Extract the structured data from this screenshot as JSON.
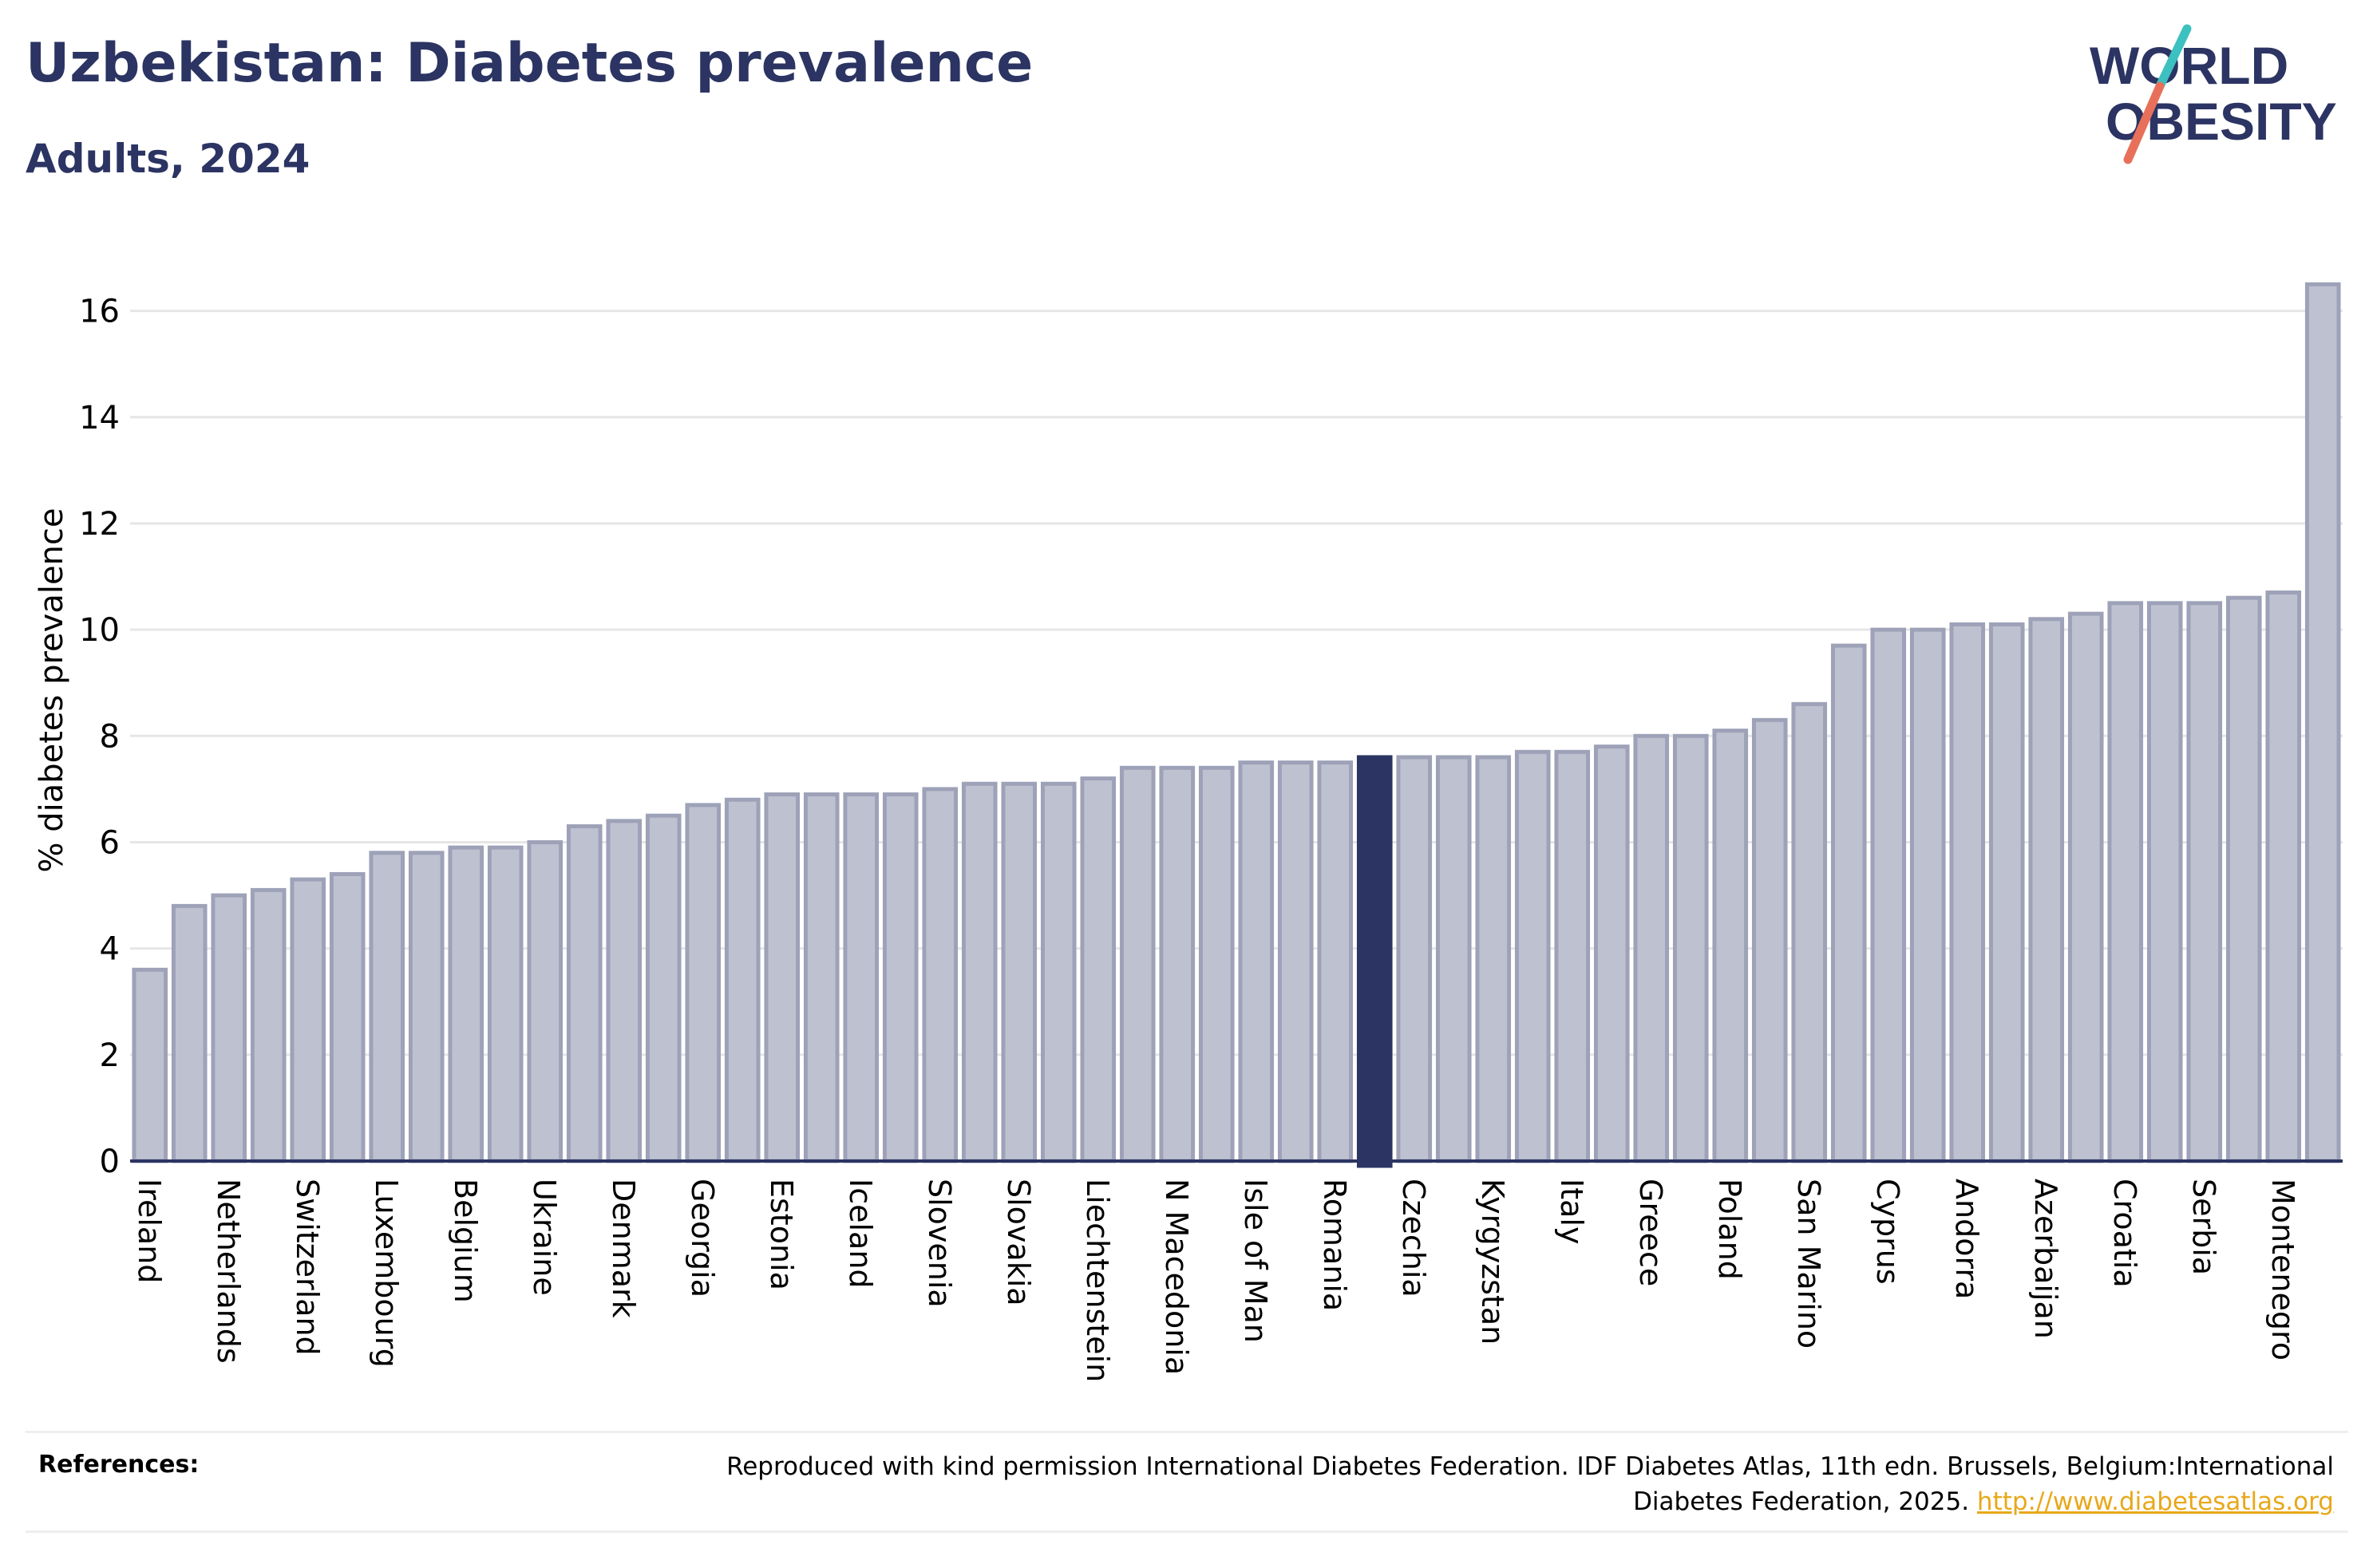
{
  "header": {
    "title": "Uzbekistan: Diabetes prevalence",
    "subtitle": "Adults, 2024"
  },
  "logo": {
    "line1": "WORLD",
    "line2": "OBESITY",
    "accent_colors": [
      "#3cc0c0",
      "#e8705a"
    ]
  },
  "references": {
    "label": "References:",
    "text": "Reproduced with kind permission International Diabetes Federation. IDF Diabetes Atlas, 11th edn. Brussels, Belgium:International Diabetes Federation, 2025.",
    "link": "http://www.diabetesatlas.org"
  },
  "colors": {
    "bar": "#bec1d0",
    "bar_border": "#9ea2b8",
    "highlight": "#2b3462",
    "grid": "#e6e6e6",
    "axis": "#2b3462"
  },
  "chart_data": {
    "type": "bar",
    "title": "Uzbekistan: Diabetes prevalence",
    "subtitle": "Adults, 2024",
    "ylabel": "% diabetes prevalence",
    "ylim": [
      0,
      17
    ],
    "yticks": [
      0,
      2,
      4,
      6,
      8,
      10,
      12,
      14,
      16
    ],
    "grid": true,
    "highlight_index": 31,
    "tick_labels": [
      {
        "index": 0,
        "label": "Ireland"
      },
      {
        "index": 2,
        "label": "Netherlands"
      },
      {
        "index": 4,
        "label": "Switzerland"
      },
      {
        "index": 6,
        "label": "Luxembourg"
      },
      {
        "index": 8,
        "label": "Belgium"
      },
      {
        "index": 10,
        "label": "Ukraine"
      },
      {
        "index": 12,
        "label": "Denmark"
      },
      {
        "index": 14,
        "label": "Georgia"
      },
      {
        "index": 16,
        "label": "Estonia"
      },
      {
        "index": 18,
        "label": "Iceland"
      },
      {
        "index": 20,
        "label": "Slovenia"
      },
      {
        "index": 22,
        "label": "Slovakia"
      },
      {
        "index": 24,
        "label": "Liechtenstein"
      },
      {
        "index": 26,
        "label": "N Macedonia"
      },
      {
        "index": 28,
        "label": "Isle of Man"
      },
      {
        "index": 30,
        "label": "Romania"
      },
      {
        "index": 32,
        "label": "Czechia"
      },
      {
        "index": 34,
        "label": "Kyrgyzstan"
      },
      {
        "index": 36,
        "label": "Italy"
      },
      {
        "index": 38,
        "label": "Greece"
      },
      {
        "index": 40,
        "label": "Poland"
      },
      {
        "index": 42,
        "label": "San Marino"
      },
      {
        "index": 44,
        "label": "Cyprus"
      },
      {
        "index": 46,
        "label": "Andorra"
      },
      {
        "index": 48,
        "label": "Azerbaijan"
      },
      {
        "index": 50,
        "label": "Croatia"
      },
      {
        "index": 52,
        "label": "Serbia"
      },
      {
        "index": 54,
        "label": "Montenegro"
      }
    ],
    "values": [
      3.6,
      4.8,
      5.0,
      5.1,
      5.3,
      5.4,
      5.8,
      5.8,
      5.9,
      5.9,
      6.0,
      6.3,
      6.4,
      6.5,
      6.7,
      6.8,
      6.9,
      6.9,
      6.9,
      6.9,
      7.0,
      7.1,
      7.1,
      7.1,
      7.2,
      7.4,
      7.4,
      7.4,
      7.5,
      7.5,
      7.5,
      7.6,
      7.6,
      7.6,
      7.6,
      7.7,
      7.7,
      7.8,
      8.0,
      8.0,
      8.1,
      8.3,
      8.6,
      9.7,
      10.0,
      10.0,
      10.1,
      10.1,
      10.2,
      10.3,
      10.5,
      10.5,
      10.5,
      10.6,
      10.7,
      16.5
    ]
  }
}
